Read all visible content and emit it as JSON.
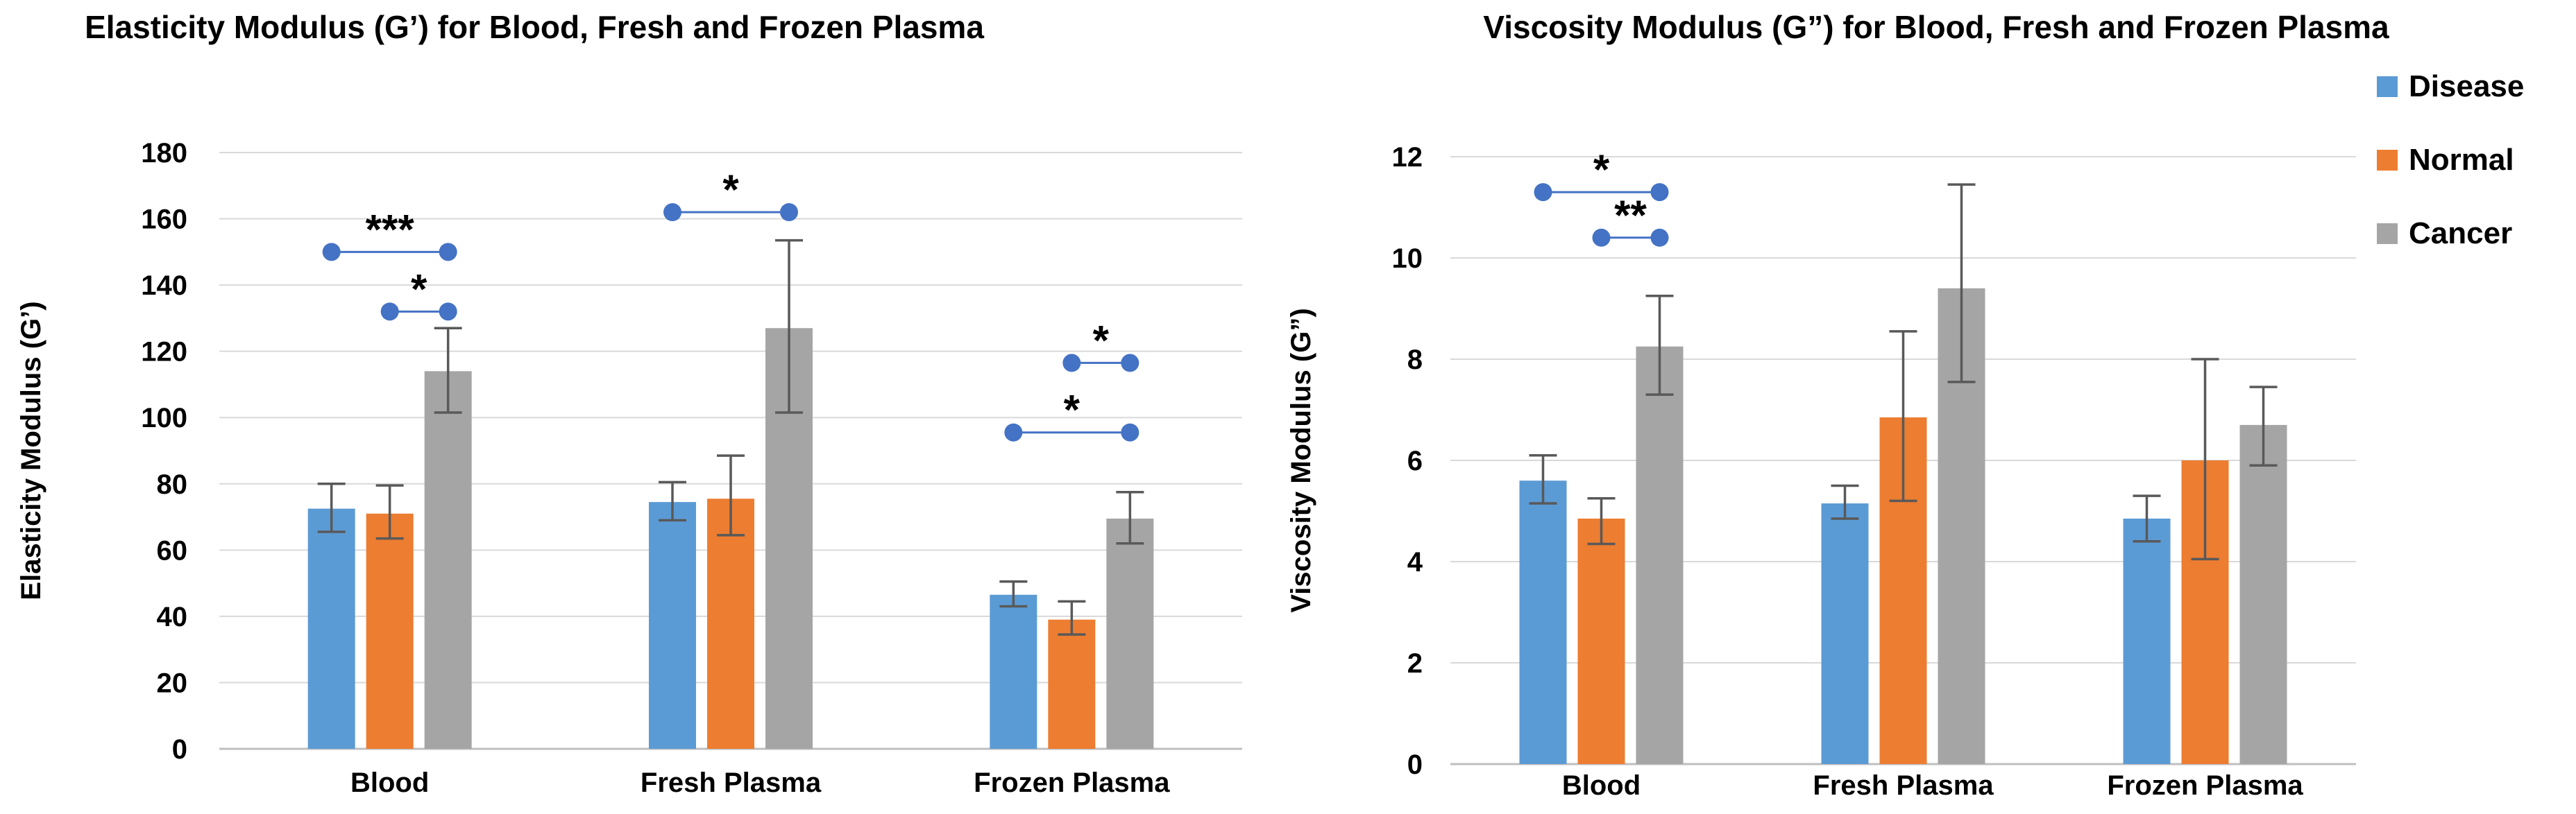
{
  "legend": {
    "position": "right",
    "items": [
      {
        "label": "Disease",
        "color": "#5B9BD5"
      },
      {
        "label": "Normal",
        "color": "#ED7D31"
      },
      {
        "label": "Cancer",
        "color": "#A5A5A5"
      }
    ]
  },
  "colors": {
    "bracket_blue": "#4472C4",
    "error_bar": "#595959",
    "gridline": "#D9D9D9",
    "axis_line": "#BFBFBF"
  },
  "chart_data": [
    {
      "type": "bar",
      "title": "Elasticity Modulus (G’) for Blood, Fresh and Frozen Plasma",
      "ylabel": "Elasticity Modulus (G’)",
      "xlabel": "",
      "ylim": [
        0,
        180
      ],
      "ystep": 20,
      "grid": true,
      "categories": [
        "Blood",
        "Fresh Plasma",
        "Frozen Plasma"
      ],
      "series": [
        {
          "name": "Disease",
          "color": "#5B9BD5",
          "values": [
            72.5,
            74.5,
            46.5
          ],
          "errors": [
            [
              65.5,
              80
            ],
            [
              69,
              80.5
            ],
            [
              43,
              50.5
            ]
          ]
        },
        {
          "name": "Normal",
          "color": "#ED7D31",
          "values": [
            71,
            75.5,
            39
          ],
          "errors": [
            [
              63.5,
              79.5
            ],
            [
              64.5,
              88.5
            ],
            [
              34.5,
              44.5
            ]
          ]
        },
        {
          "name": "Cancer",
          "color": "#A5A5A5",
          "values": [
            114,
            127,
            69.5
          ],
          "errors": [
            [
              101.5,
              127
            ],
            [
              101.5,
              153.5
            ],
            [
              62,
              77.5
            ]
          ]
        }
      ],
      "significance": [
        {
          "category": 0,
          "from": "Disease",
          "to": "Cancer",
          "y": 150,
          "label": "***"
        },
        {
          "category": 0,
          "from": "Normal",
          "to": "Cancer",
          "y": 132,
          "label": "*"
        },
        {
          "category": 1,
          "from": "Disease",
          "to": "Cancer",
          "y": 162,
          "label": "*"
        },
        {
          "category": 2,
          "from": "Normal",
          "to": "Cancer",
          "y": 116.5,
          "label": "*"
        },
        {
          "category": 2,
          "from": "Disease",
          "to": "Cancer",
          "y": 95.5,
          "label": "*"
        }
      ]
    },
    {
      "type": "bar",
      "title": "Viscosity Modulus (G”) for Blood, Fresh and Frozen Plasma",
      "ylabel": "Viscosity Modulus (G”)",
      "xlabel": "",
      "ylim": [
        0,
        12
      ],
      "ystep": 2,
      "grid": true,
      "categories": [
        "Blood",
        "Fresh Plasma",
        "Frozen Plasma"
      ],
      "series": [
        {
          "name": "Disease",
          "color": "#5B9BD5",
          "values": [
            5.6,
            5.15,
            4.85
          ],
          "errors": [
            [
              5.15,
              6.1
            ],
            [
              4.85,
              5.5
            ],
            [
              4.4,
              5.3
            ]
          ]
        },
        {
          "name": "Normal",
          "color": "#ED7D31",
          "values": [
            4.85,
            6.85,
            6.0
          ],
          "errors": [
            [
              4.35,
              5.25
            ],
            [
              5.2,
              8.55
            ],
            [
              4.05,
              8.0
            ]
          ]
        },
        {
          "name": "Cancer",
          "color": "#A5A5A5",
          "values": [
            8.25,
            9.4,
            6.7
          ],
          "errors": [
            [
              7.3,
              9.25
            ],
            [
              7.55,
              11.45
            ],
            [
              5.9,
              7.45
            ]
          ]
        }
      ],
      "significance": [
        {
          "category": 0,
          "from": "Disease",
          "to": "Cancer",
          "y": 11.3,
          "label": "*"
        },
        {
          "category": 0,
          "from": "Normal",
          "to": "Cancer",
          "y": 10.4,
          "label": "**"
        }
      ]
    }
  ]
}
